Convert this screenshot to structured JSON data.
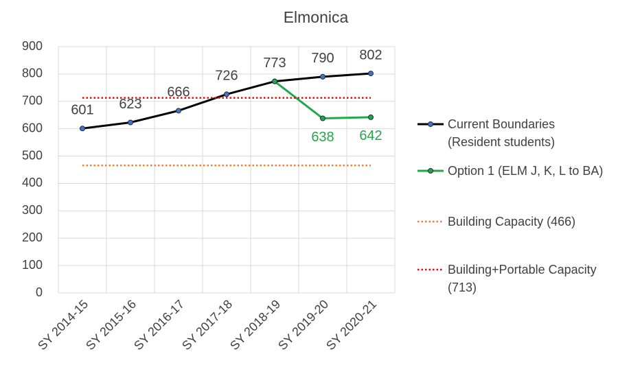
{
  "chart_data": {
    "type": "line",
    "title": "Elmonica",
    "categories": [
      "SY 2014-15",
      "SY 2015-16",
      "SY 2016-17",
      "SY 2017-18",
      "SY 2018-19",
      "SY 2019-20",
      "SY 2020-21"
    ],
    "series": [
      {
        "name": "Current Boundaries (Resident students)",
        "color": "#000000",
        "marker_color": "#4472c4",
        "marker": true,
        "data_labels": true,
        "label_position": "above",
        "label_color": "#404040",
        "values": [
          601,
          623,
          666,
          726,
          773,
          790,
          802
        ]
      },
      {
        "name": "Option 1 (ELM J, K, L to BA)",
        "color": "#22a64a",
        "marker_color": "#22a64a",
        "marker": true,
        "data_labels": true,
        "label_position": "below",
        "label_color": "#22a64a",
        "values": [
          null,
          null,
          null,
          null,
          773,
          638,
          642
        ],
        "value_labels": [
          null,
          null,
          null,
          null,
          null,
          "638",
          "642"
        ]
      },
      {
        "name": "Building Capacity (466)",
        "color": "#ed7d31",
        "dash": "dotted",
        "marker": false,
        "data_labels": false,
        "values": [
          466,
          466,
          466,
          466,
          466,
          466,
          466
        ]
      },
      {
        "name": "Building+Portable Capacity (713)",
        "color": "#ff0000",
        "dash": "dotted",
        "marker": false,
        "data_labels": false,
        "values": [
          713,
          713,
          713,
          713,
          713,
          713,
          713
        ]
      }
    ],
    "ylim": [
      0,
      900
    ],
    "yticks": [
      0,
      100,
      200,
      300,
      400,
      500,
      600,
      700,
      800,
      900
    ],
    "grid": true,
    "legend": "right"
  }
}
